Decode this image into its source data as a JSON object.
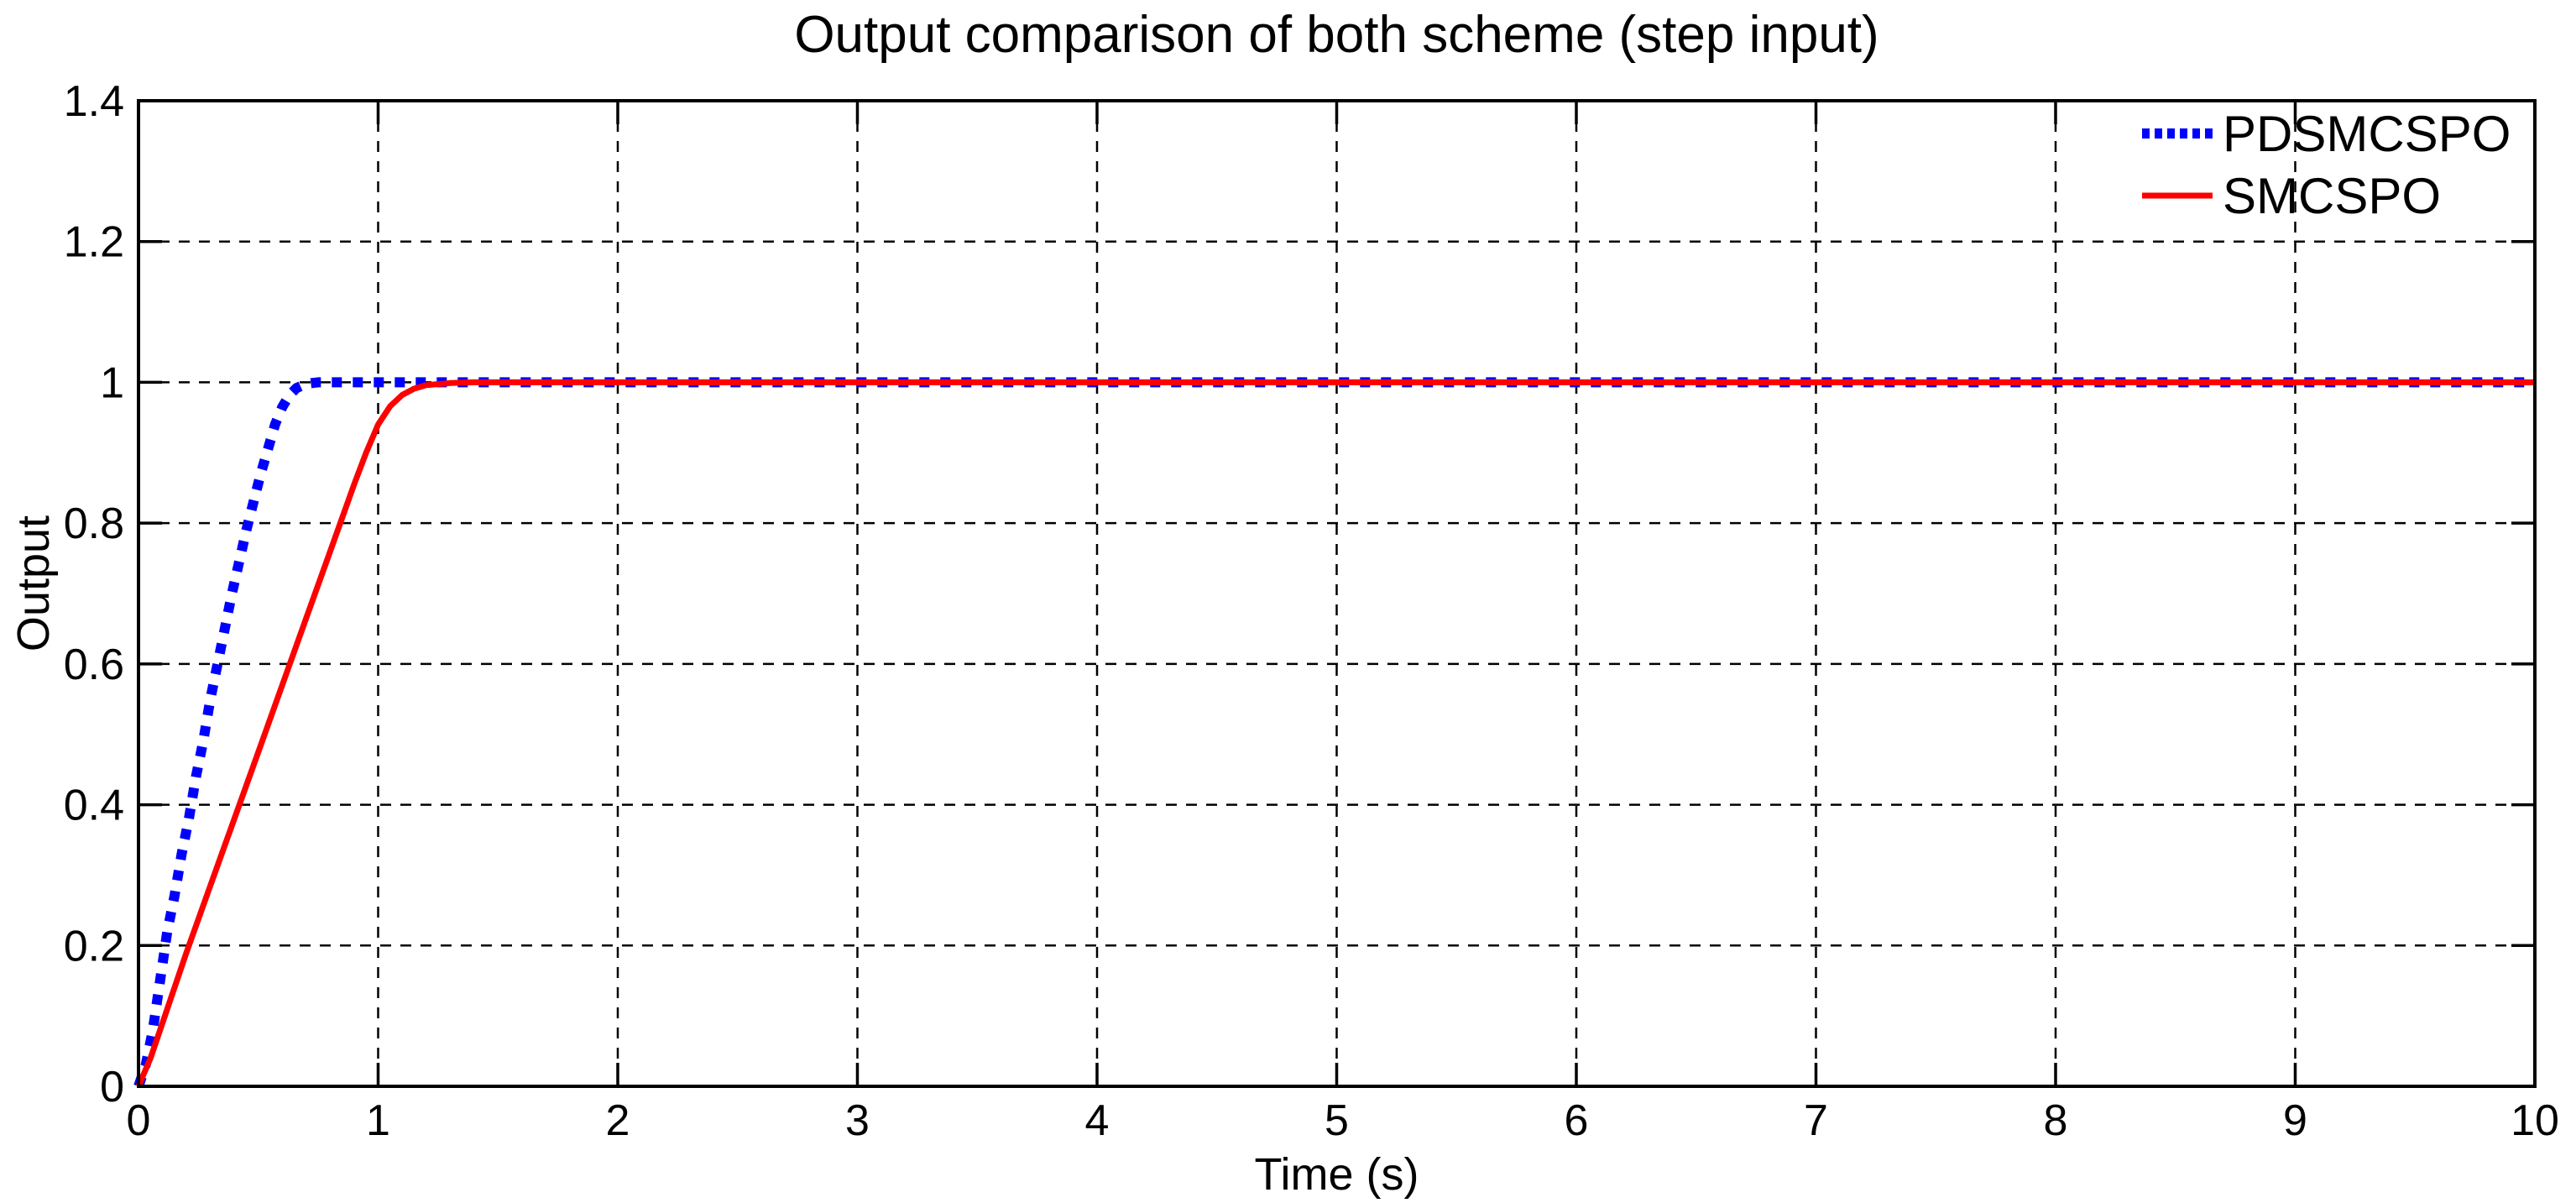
{
  "chart_data": {
    "type": "line",
    "title": "Output comparison of both scheme (step input)",
    "xlabel": "Time (s)",
    "ylabel": "Output",
    "xlim": [
      0,
      10
    ],
    "ylim": [
      0,
      1.4
    ],
    "xticks": [
      0,
      1,
      2,
      3,
      4,
      5,
      6,
      7,
      8,
      9,
      10
    ],
    "xtick_labels": [
      "0",
      "1",
      "2",
      "3",
      "4",
      "5",
      "6",
      "7",
      "8",
      "9",
      "10"
    ],
    "yticks": [
      0,
      0.2,
      0.4,
      0.6,
      0.8,
      1.0,
      1.2,
      1.4
    ],
    "ytick_labels": [
      "0",
      "0.2",
      "0.4",
      "0.6",
      "0.8",
      "1",
      "1.2",
      "1.4"
    ],
    "grid": true,
    "grid_color": "#000000",
    "axis_color": "#000000",
    "background_color": "#ffffff",
    "legend_position": "top-right",
    "legend_box": false,
    "series": [
      {
        "name": "PDSMCSPO",
        "color": "#0000ff",
        "line_style": "dotted",
        "line_width": 12,
        "points": [
          [
            0,
            0
          ],
          [
            0.03,
            0.03
          ],
          [
            0.06,
            0.08
          ],
          [
            0.09,
            0.15
          ],
          [
            0.12,
            0.22
          ],
          [
            0.15,
            0.27
          ],
          [
            0.18,
            0.33
          ],
          [
            0.21,
            0.38
          ],
          [
            0.24,
            0.44
          ],
          [
            0.27,
            0.49
          ],
          [
            0.3,
            0.55
          ],
          [
            0.33,
            0.6
          ],
          [
            0.36,
            0.65
          ],
          [
            0.39,
            0.7
          ],
          [
            0.42,
            0.745
          ],
          [
            0.45,
            0.79
          ],
          [
            0.48,
            0.83
          ],
          [
            0.51,
            0.87
          ],
          [
            0.54,
            0.905
          ],
          [
            0.57,
            0.94
          ],
          [
            0.6,
            0.965
          ],
          [
            0.63,
            0.982
          ],
          [
            0.66,
            0.992
          ],
          [
            0.7,
            0.998
          ],
          [
            0.75,
            1.0
          ],
          [
            1.0,
            1.0
          ],
          [
            1.5,
            1.0
          ],
          [
            2,
            1.0
          ],
          [
            3,
            1.0
          ],
          [
            4,
            1.0
          ],
          [
            5,
            1.0
          ],
          [
            6,
            1.0
          ],
          [
            7,
            1.0
          ],
          [
            8,
            1.0
          ],
          [
            9,
            1.0
          ],
          [
            10,
            1.0
          ]
        ]
      },
      {
        "name": "SMCSPO",
        "color": "#ff0000",
        "line_style": "solid",
        "line_width": 7,
        "points": [
          [
            0,
            0
          ],
          [
            0.05,
            0.04
          ],
          [
            0.1,
            0.09
          ],
          [
            0.2,
            0.19
          ],
          [
            0.3,
            0.285
          ],
          [
            0.4,
            0.38
          ],
          [
            0.5,
            0.475
          ],
          [
            0.6,
            0.57
          ],
          [
            0.7,
            0.665
          ],
          [
            0.8,
            0.76
          ],
          [
            0.9,
            0.855
          ],
          [
            0.95,
            0.9
          ],
          [
            1.0,
            0.94
          ],
          [
            1.05,
            0.966
          ],
          [
            1.1,
            0.982
          ],
          [
            1.15,
            0.991
          ],
          [
            1.2,
            0.996
          ],
          [
            1.3,
            0.999
          ],
          [
            1.4,
            1.0
          ],
          [
            2,
            1.0
          ],
          [
            3,
            1.0
          ],
          [
            4,
            1.0
          ],
          [
            5,
            1.0
          ],
          [
            6,
            1.0
          ],
          [
            7,
            1.0
          ],
          [
            8,
            1.0
          ],
          [
            9,
            1.0
          ],
          [
            10,
            1.0
          ]
        ]
      }
    ]
  }
}
